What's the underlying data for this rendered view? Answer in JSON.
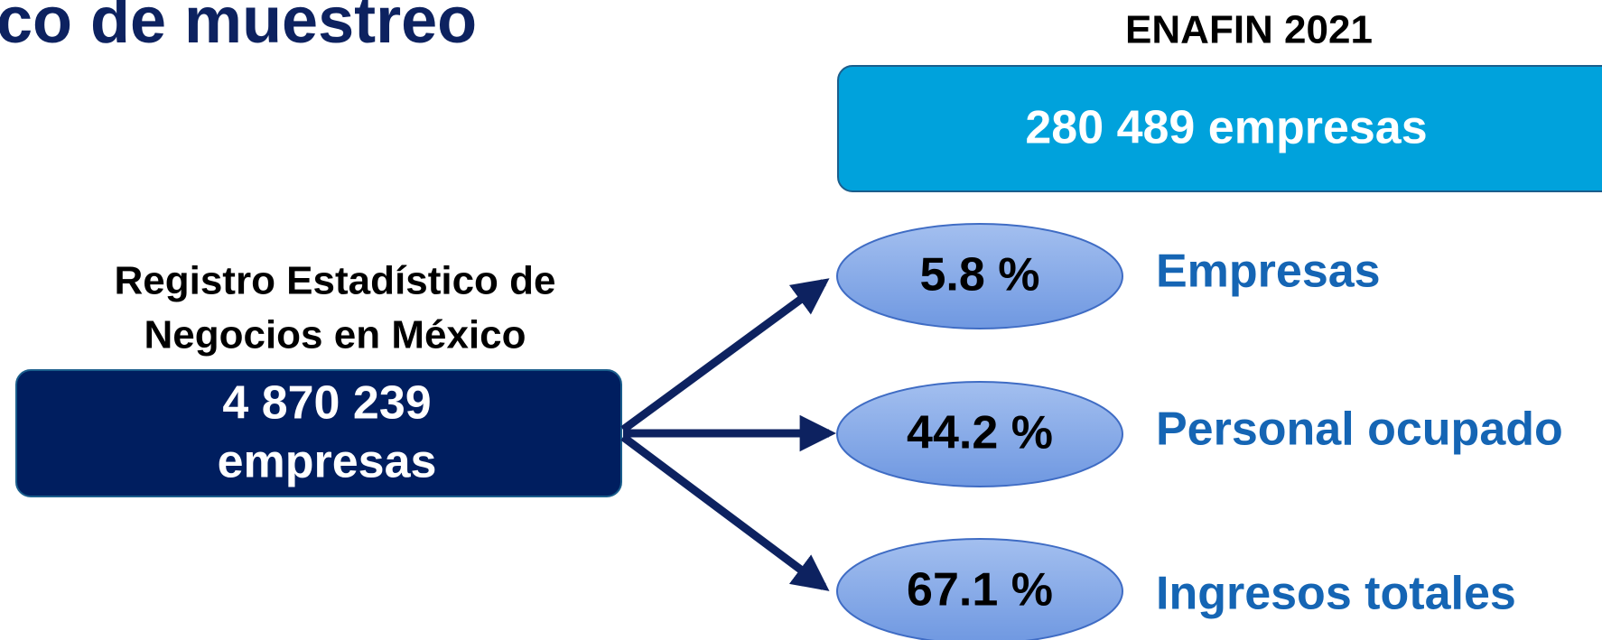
{
  "title": "co de muestreo",
  "source": {
    "label_lines": [
      "Registro Estadístico de",
      "Negocios en México"
    ],
    "box_lines": [
      "4 870 239",
      "empresas"
    ]
  },
  "survey": {
    "title": "ENAFIN 2021",
    "box": "280 489 empresas"
  },
  "coverage": [
    {
      "percent": "5.8 %",
      "label": "Empresas"
    },
    {
      "percent": "44.2 %",
      "label": "Personal ocupado"
    },
    {
      "percent": "67.1 %",
      "label": "Ingresos totales"
    }
  ]
}
